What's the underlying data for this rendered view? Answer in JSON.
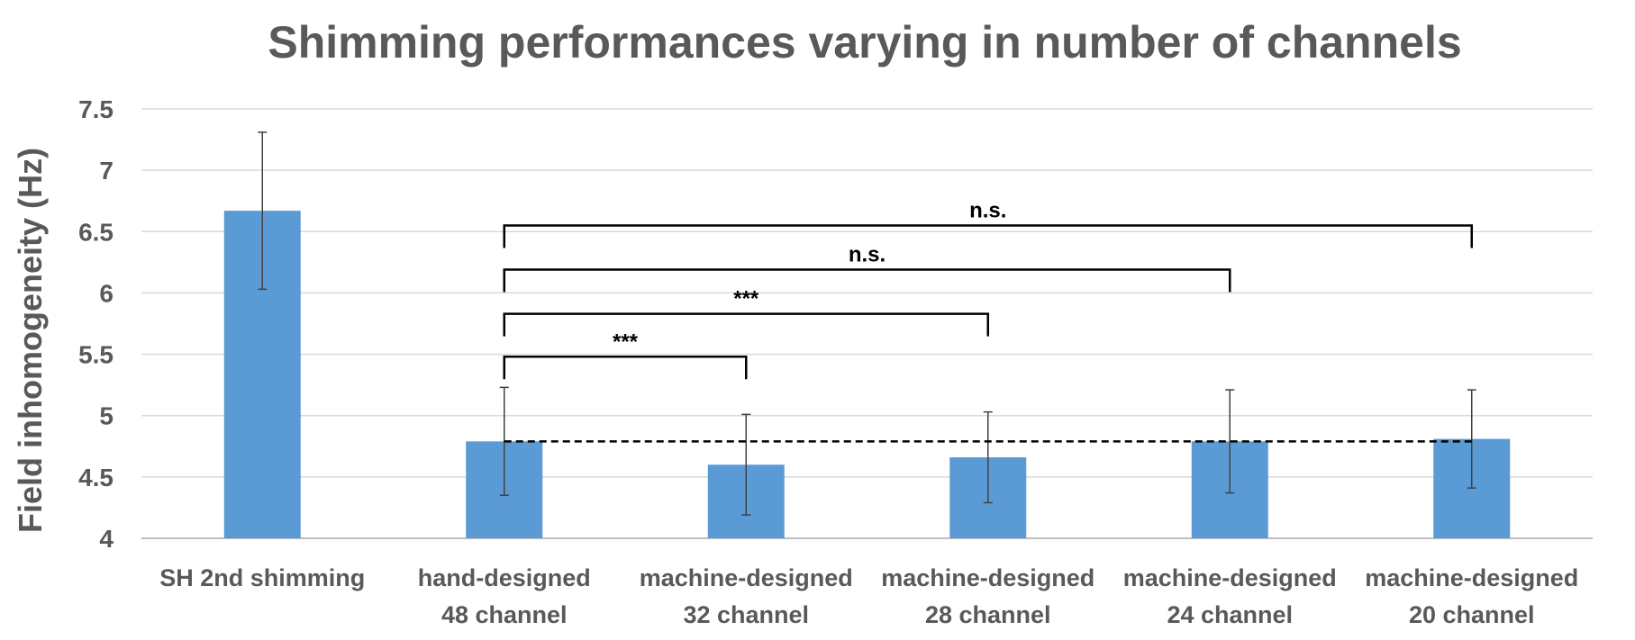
{
  "chart_data": {
    "type": "bar",
    "title": "Shimming performances varying in number of channels",
    "xlabel": "",
    "ylabel": "Field inhomogeneity (Hz)",
    "ylim": [
      4,
      7.5
    ],
    "yticks": [
      "4",
      "4.5",
      "5",
      "5.5",
      "6",
      "6.5",
      "7",
      "7.5"
    ],
    "grid": true,
    "categories": [
      [
        "SH 2nd shimming"
      ],
      [
        "hand-designed",
        "48 channel"
      ],
      [
        "machine-designed",
        "32 channel"
      ],
      [
        "machine-designed",
        "28 channel"
      ],
      [
        "machine-designed",
        "24 channel"
      ],
      [
        "machine-designed",
        "20 channel"
      ]
    ],
    "values": [
      6.67,
      4.79,
      4.6,
      4.66,
      4.79,
      4.81
    ],
    "error": [
      0.64,
      0.44,
      0.41,
      0.37,
      0.42,
      0.4
    ],
    "bar_color": "#5b9bd5",
    "reference_line": {
      "value": 4.79,
      "from_category": 1,
      "to_category": 5,
      "style": "dashed"
    },
    "significance": [
      {
        "from": 1,
        "to": 2,
        "label": "***",
        "level": 5.48
      },
      {
        "from": 1,
        "to": 3,
        "label": "***",
        "level": 5.83
      },
      {
        "from": 1,
        "to": 4,
        "label": "n.s.",
        "level": 6.19
      },
      {
        "from": 1,
        "to": 5,
        "label": "n.s.",
        "level": 6.55
      }
    ]
  }
}
